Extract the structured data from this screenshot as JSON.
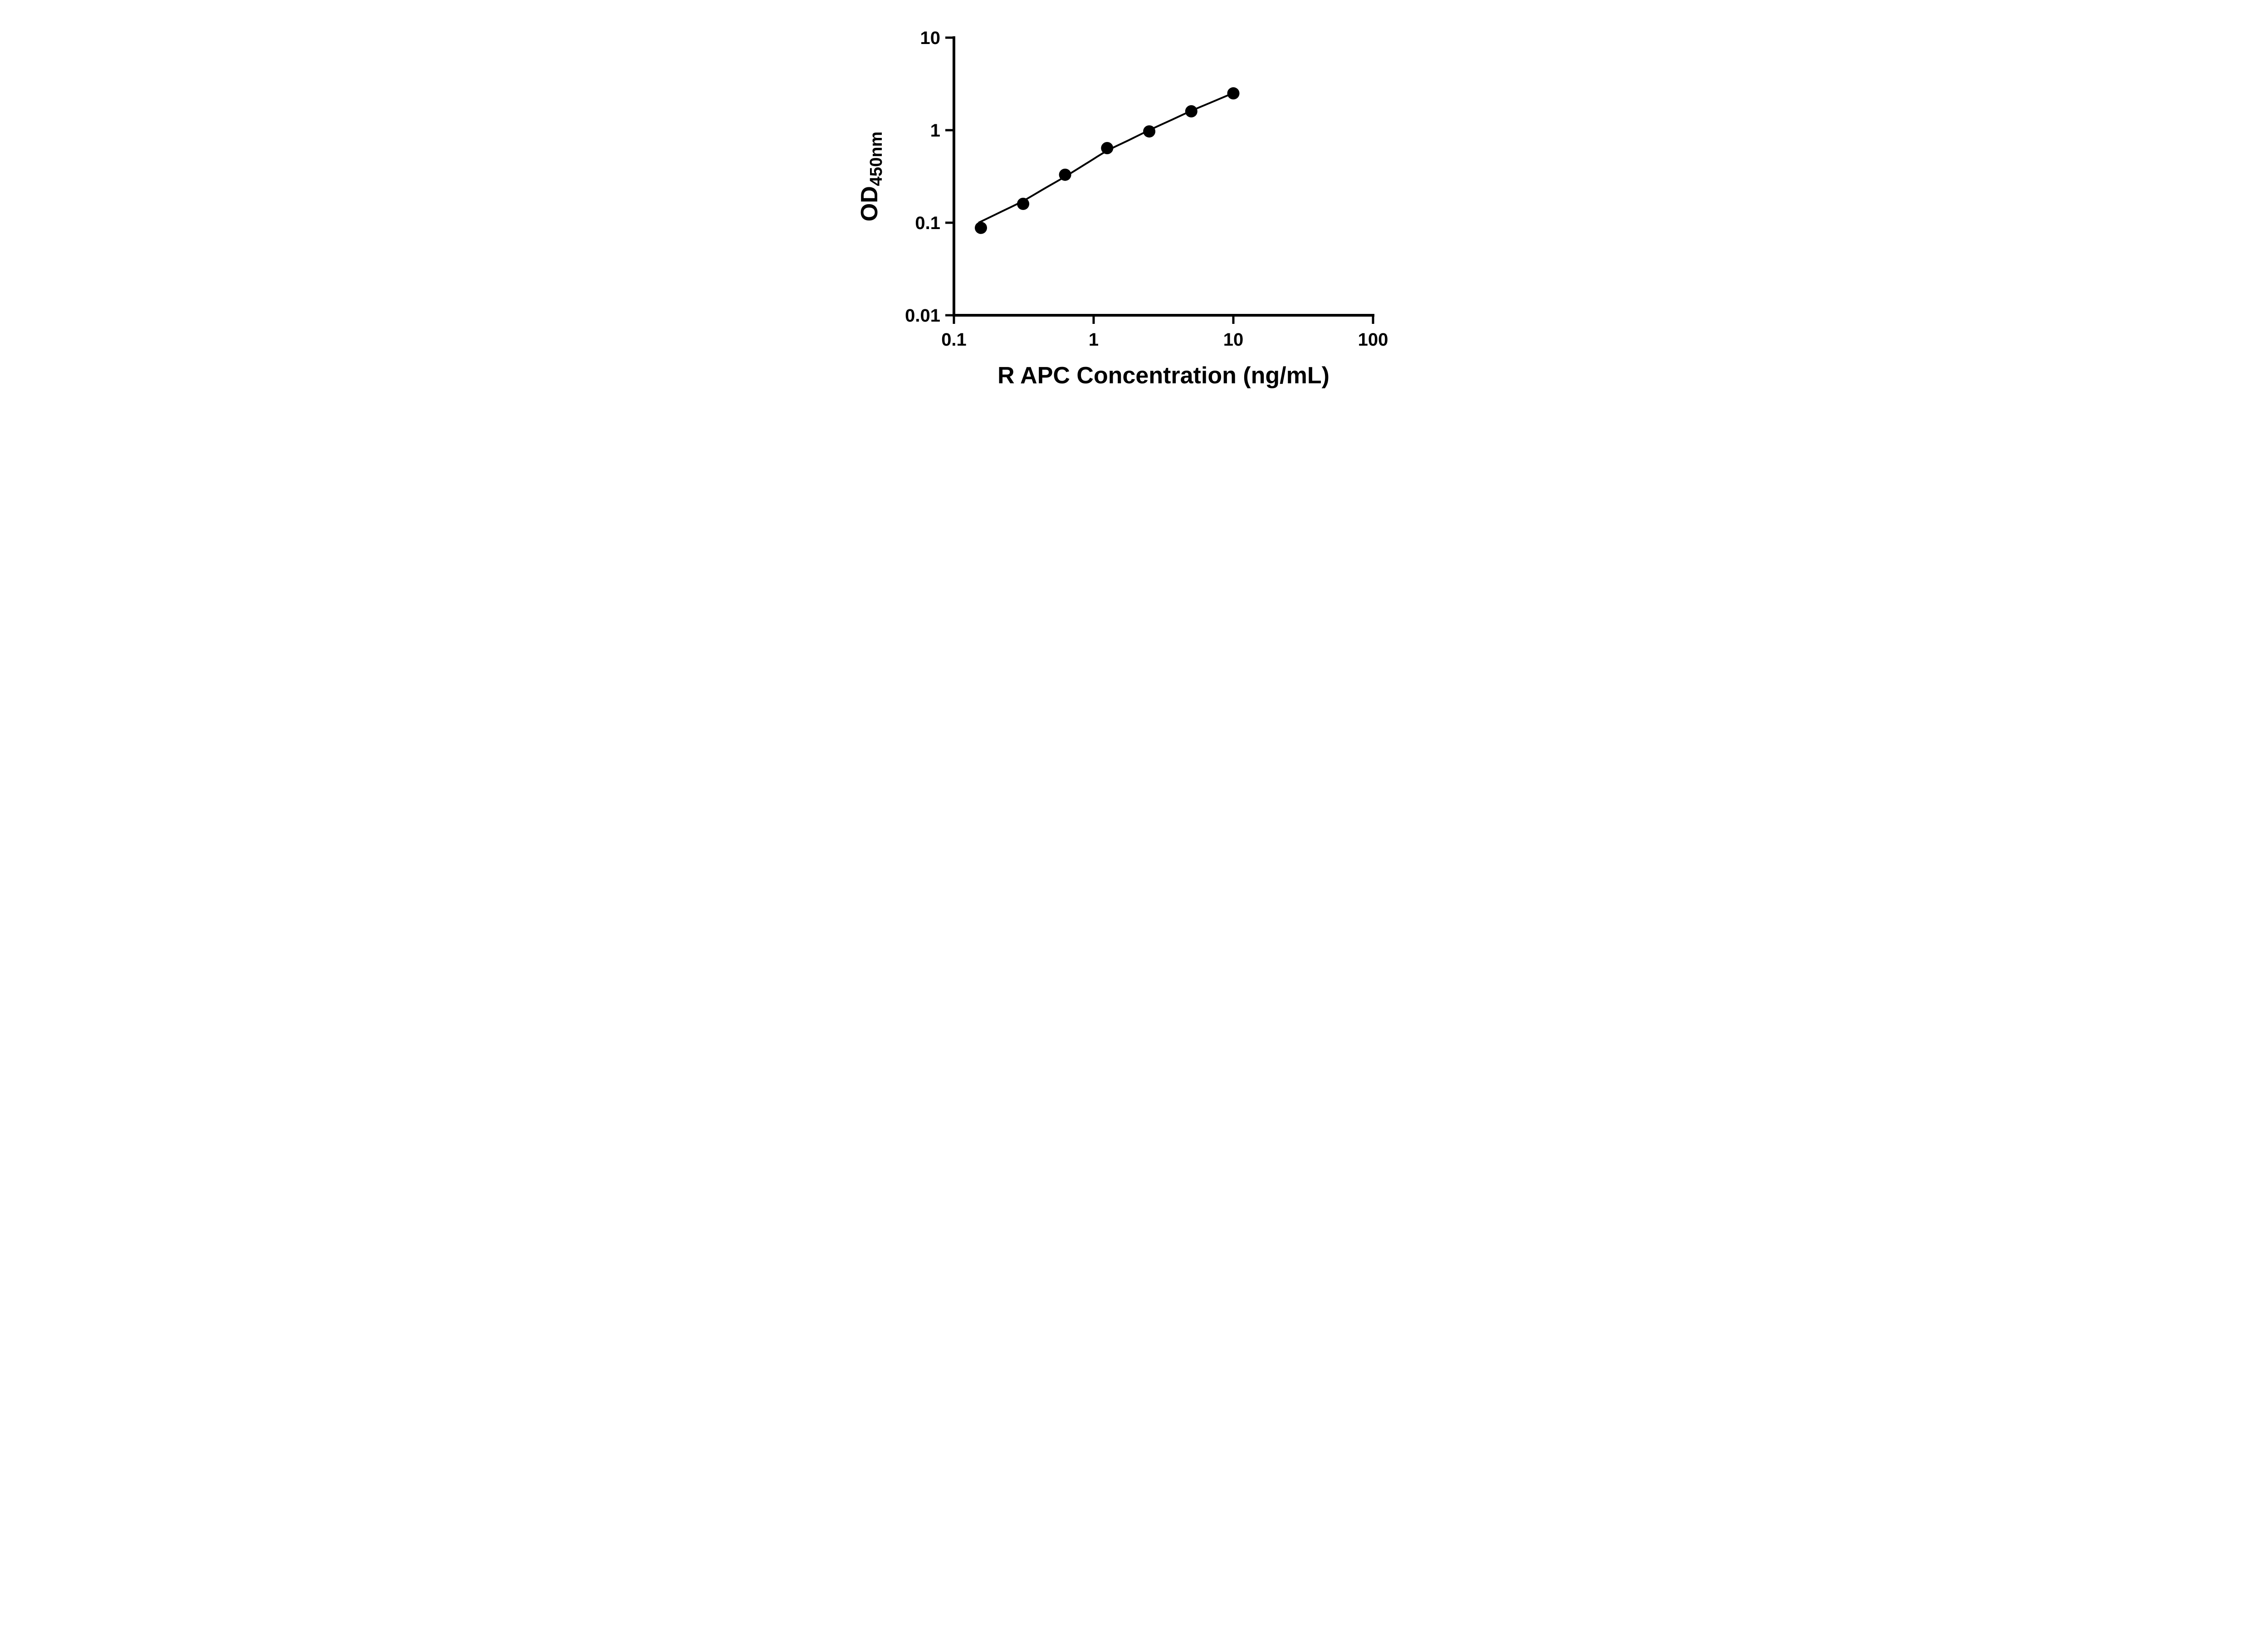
{
  "chart_data": {
    "type": "scatter",
    "title": "",
    "xlabel": "R APC Concentration (ng/mL)",
    "ylabel_main": "OD",
    "ylabel_sub": "450nm",
    "xscale": "log",
    "yscale": "log",
    "xlim": [
      0.1,
      100
    ],
    "ylim": [
      0.01,
      10
    ],
    "x_tick_labels": [
      "0.1",
      "1",
      "10",
      "100"
    ],
    "y_tick_labels": [
      "0.01",
      "0.1",
      "1",
      "10"
    ],
    "grid": false,
    "legend": false,
    "axis_color": "#000000",
    "marker_color": "#000000",
    "line_color": "#000000",
    "series": [
      {
        "marker": "circle",
        "points": [
          {
            "x": 0.156,
            "y": 0.088
          },
          {
            "x": 0.313,
            "y": 0.16
          },
          {
            "x": 0.625,
            "y": 0.33
          },
          {
            "x": 1.25,
            "y": 0.64
          },
          {
            "x": 2.5,
            "y": 0.97
          },
          {
            "x": 5,
            "y": 1.6
          },
          {
            "x": 10,
            "y": 2.5
          }
        ]
      }
    ],
    "fit_line_points": [
      {
        "x": 0.15,
        "y": 0.1
      },
      {
        "x": 0.217,
        "y": 0.131
      },
      {
        "x": 0.313,
        "y": 0.172
      },
      {
        "x": 0.442,
        "y": 0.233
      },
      {
        "x": 0.625,
        "y": 0.315
      },
      {
        "x": 0.884,
        "y": 0.435
      },
      {
        "x": 1.25,
        "y": 0.6
      },
      {
        "x": 1.77,
        "y": 0.775
      },
      {
        "x": 2.5,
        "y": 1.0
      },
      {
        "x": 3.54,
        "y": 1.273
      },
      {
        "x": 5,
        "y": 1.62
      },
      {
        "x": 7.07,
        "y": 2.021
      },
      {
        "x": 10,
        "y": 2.52
      }
    ]
  }
}
